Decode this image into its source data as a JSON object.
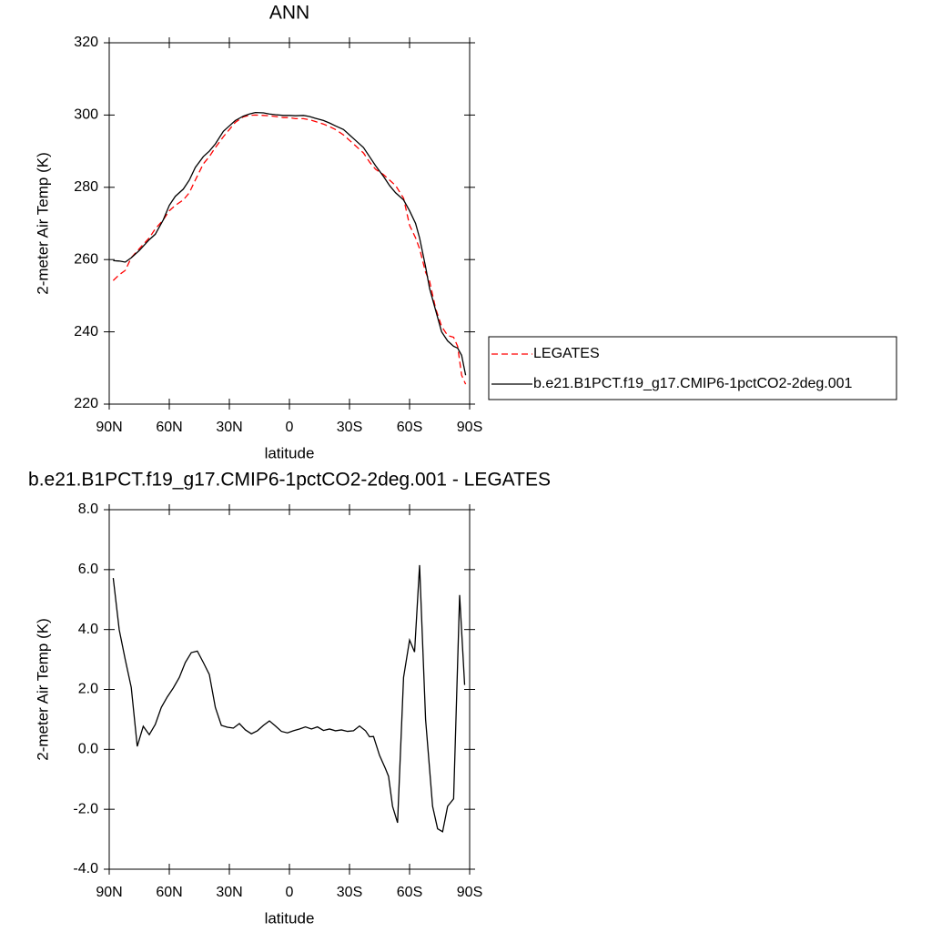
{
  "chart_data": [
    {
      "type": "line",
      "title": "ANN",
      "x_label": "latitude",
      "y_label": "2-meter Air Temp (K)",
      "x": [
        88,
        85,
        82,
        79,
        75,
        70,
        67,
        63,
        60,
        57,
        53,
        50,
        47,
        43,
        40,
        37,
        33,
        30,
        27,
        23,
        20,
        17,
        13,
        10,
        7,
        3,
        0,
        -3,
        -7,
        -10,
        -13,
        -17,
        -20,
        -23,
        -27,
        -30,
        -33,
        -37,
        -40,
        -43,
        -47,
        -50,
        -53,
        -57,
        -60,
        -63,
        -65,
        -68,
        -70,
        -73,
        -76,
        -79,
        -82,
        -84,
        -86,
        -88
      ],
      "series": [
        {
          "name": "LEGATES",
          "color": "#ff0000",
          "dashed": true,
          "values": [
            254.2,
            255.8,
            257,
            260.5,
            263,
            266,
            268.5,
            271,
            273.5,
            275,
            276.5,
            278.5,
            282,
            286.5,
            288.5,
            291,
            294,
            296,
            298,
            299.5,
            299.9,
            300,
            299.9,
            299.8,
            299.6,
            299.3,
            299.3,
            299,
            299,
            298.7,
            298.2,
            297.5,
            296.8,
            296,
            294.5,
            293,
            291.5,
            289.5,
            287,
            285,
            283.5,
            282,
            280.5,
            277,
            269.5,
            266,
            263,
            256.5,
            254,
            246.5,
            241.5,
            239,
            238.5,
            236,
            228,
            225.5
          ]
        },
        {
          "name": "b.e21.B1PCT.f19_g17.CMIP6-1pctCO2-2deg.001",
          "color": "#000000",
          "dashed": false,
          "values": [
            259.7,
            259.6,
            259.3,
            260.5,
            262.5,
            265.5,
            267,
            271,
            275,
            277.5,
            279.5,
            282,
            285.5,
            288.5,
            290,
            292,
            295.5,
            297,
            298.5,
            299.7,
            300.3,
            300.7,
            300.6,
            300.3,
            300.1,
            299.9,
            299.9,
            299.8,
            299.9,
            299.6,
            299.1,
            298.5,
            297.8,
            297,
            296,
            294.5,
            293,
            291,
            288.5,
            286,
            283,
            280.5,
            278.5,
            276.5,
            273.5,
            270,
            266,
            258,
            252,
            246,
            240,
            237.5,
            236,
            235.5,
            233.5,
            228
          ]
        }
      ],
      "xlim": [
        90,
        -90
      ],
      "xticks": [
        {
          "value": 90,
          "label": "90N"
        },
        {
          "value": 60,
          "label": "60N"
        },
        {
          "value": 30,
          "label": "30N"
        },
        0,
        {
          "value": -30,
          "label": "30S"
        },
        {
          "value": -60,
          "label": "60S"
        },
        {
          "value": -90,
          "label": "90S"
        }
      ],
      "ylim": [
        220,
        320
      ],
      "yticks": [
        220,
        240,
        260,
        280,
        300,
        320
      ],
      "legend": "right"
    },
    {
      "type": "line",
      "title": "b.e21.B1PCT.f19_g17.CMIP6-1pctCO2-2deg.001 - LEGATES",
      "x_label": "latitude",
      "y_label": "2-meter Air Temp (K)",
      "x": [
        88,
        85,
        82,
        79,
        76,
        73,
        70,
        67,
        64,
        61,
        58,
        55,
        52,
        49,
        46,
        43,
        40,
        37,
        34,
        31,
        28,
        25,
        22,
        19,
        16,
        13,
        10,
        7,
        4,
        1,
        -2,
        -5,
        -8,
        -11,
        -14,
        -17,
        -20,
        -23,
        -26,
        -29,
        -32,
        -35,
        -38,
        -40,
        -42,
        -45,
        -48,
        -49.5,
        -51.5,
        -54,
        -57,
        -60,
        -62.5,
        -65,
        -68,
        -71.5,
        -74,
        -76.5,
        -79,
        -82,
        -85,
        -87.5
      ],
      "series": [
        {
          "color": "#000000",
          "dashed": false,
          "values": [
            5.72,
            3.99,
            3.0,
            2.07,
            0.1,
            0.77,
            0.49,
            0.83,
            1.4,
            1.75,
            2.05,
            2.4,
            2.9,
            3.23,
            3.28,
            2.9,
            2.5,
            1.4,
            0.8,
            0.74,
            0.71,
            0.86,
            0.65,
            0.52,
            0.62,
            0.8,
            0.95,
            0.78,
            0.6,
            0.55,
            0.62,
            0.68,
            0.75,
            0.68,
            0.75,
            0.63,
            0.68,
            0.62,
            0.65,
            0.6,
            0.62,
            0.78,
            0.62,
            0.42,
            0.43,
            -0.2,
            -0.65,
            -0.9,
            -1.9,
            -2.45,
            2.4,
            3.65,
            3.25,
            6.15,
            1.0,
            -1.9,
            -2.65,
            -2.75,
            -1.9,
            -1.65,
            5.15,
            2.15
          ]
        }
      ],
      "xlim": [
        90,
        -90
      ],
      "xticks": [
        {
          "value": 90,
          "label": "90N"
        },
        {
          "value": 60,
          "label": "60N"
        },
        {
          "value": 30,
          "label": "30N"
        },
        0,
        {
          "value": -30,
          "label": "30S"
        },
        {
          "value": -60,
          "label": "60S"
        },
        {
          "value": -90,
          "label": "90S"
        }
      ],
      "ylim": [
        -4,
        8
      ],
      "yticks": [
        {
          "value": -4,
          "label": "-4.0"
        },
        {
          "value": -2,
          "label": "-2.0"
        },
        {
          "value": 0,
          "label": "0.0"
        },
        {
          "value": 2,
          "label": "2.0"
        },
        {
          "value": 4,
          "label": "4.0"
        },
        {
          "value": 6,
          "label": "6.0"
        },
        {
          "value": 8,
          "label": "8.0"
        }
      ]
    }
  ]
}
